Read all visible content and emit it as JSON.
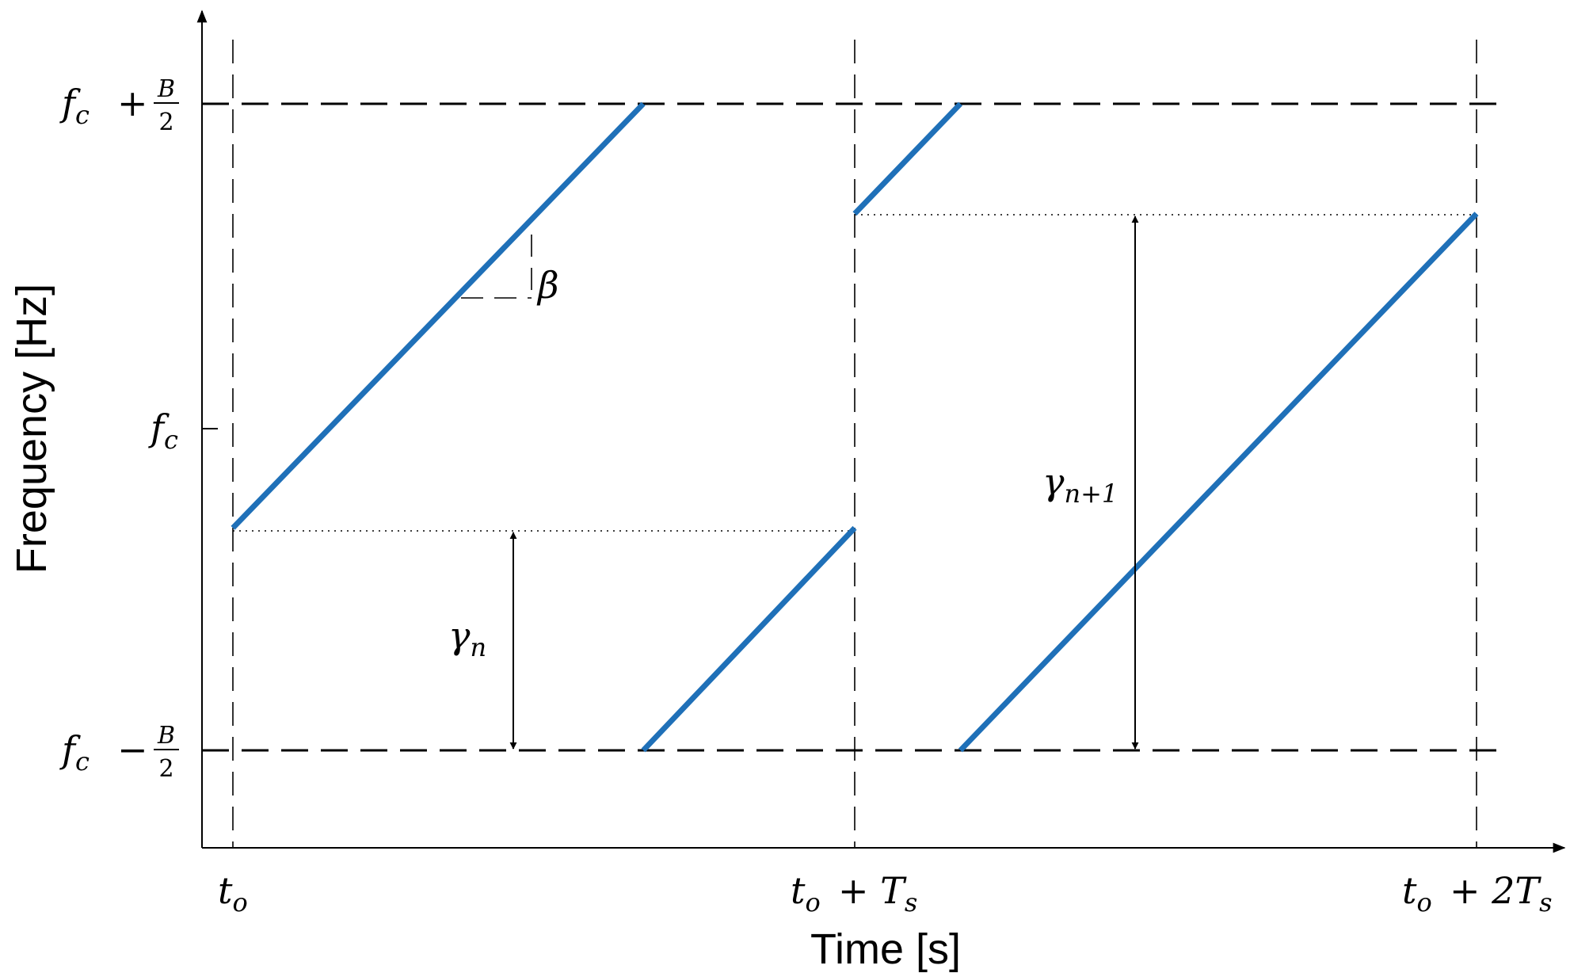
{
  "chart_data": {
    "type": "line",
    "xlabel": "Time [s]",
    "ylabel": "Frequency [Hz]",
    "x_ticks": [
      {
        "value": 0,
        "main": "t",
        "sub": "o",
        "suffix": ""
      },
      {
        "value": 1,
        "main": "t",
        "sub": "o",
        "suffix": "+ T",
        "suffix_sub": "s"
      },
      {
        "value": 2,
        "main": "t",
        "sub": "o",
        "suffix": "+ 2T",
        "suffix_sub": "s"
      }
    ],
    "y_ticks": [
      {
        "value": 0.5,
        "main": "f",
        "sub": "c",
        "op": "+",
        "num": "B",
        "den": "2"
      },
      {
        "value": 0,
        "main": "f",
        "sub": "c",
        "op": "",
        "num": "",
        "den": ""
      },
      {
        "value": -0.5,
        "main": "f",
        "sub": "c",
        "op": "−",
        "num": "B",
        "den": "2"
      }
    ],
    "xlim": [
      -0.05,
      2.15
    ],
    "ylim": [
      -0.65,
      0.65
    ],
    "color": "#1f70b8",
    "series": [
      {
        "segments": [
          {
            "x": [
              0,
              0.66
            ],
            "y": [
              -0.156,
              0.5
            ]
          },
          {
            "x": [
              0.66,
              1.0
            ],
            "y": [
              -0.5,
              -0.156
            ]
          },
          {
            "x": [
              1.0,
              1.17
            ],
            "y": [
              0.33,
              0.5
            ]
          },
          {
            "x": [
              1.17,
              2.0
            ],
            "y": [
              -0.5,
              0.33
            ]
          }
        ]
      }
    ],
    "annotations": {
      "gamma_n": {
        "main": "γ",
        "sub": "n"
      },
      "gamma_n1": {
        "main": "γ",
        "sub": "n+1"
      },
      "beta": "β"
    }
  }
}
